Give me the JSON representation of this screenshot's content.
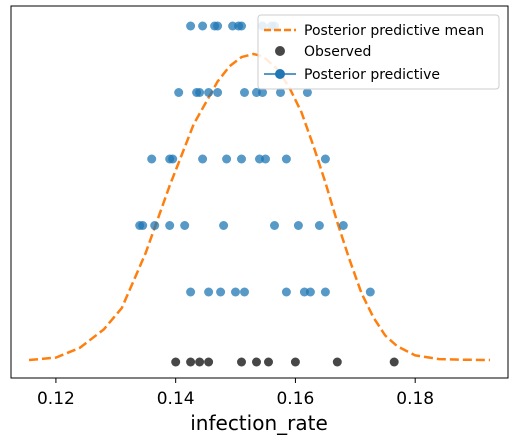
{
  "chart_data": {
    "type": "scatter",
    "title": "",
    "xlabel": "infection_rate",
    "ylabel": "",
    "xlim": [
      0.1125,
      0.1955
    ],
    "x_ticks": [
      0.12,
      0.14,
      0.16,
      0.18
    ],
    "x_tick_labels": [
      "0.12",
      "0.14",
      "0.16",
      "0.18"
    ],
    "grid": false,
    "legend_position": "upper-right",
    "colors": {
      "observed": "#333333",
      "predictive": "#1f77b4",
      "mean": "#ff7f0e",
      "axis": "#000000"
    },
    "legend": [
      {
        "label": "Posterior predictive mean",
        "marker": "dashed-line"
      },
      {
        "label": "Observed",
        "marker": "dot"
      },
      {
        "label": "Posterior predictive",
        "marker": "line-dot"
      }
    ],
    "observed": [
      0.14,
      0.1425,
      0.144,
      0.1455,
      0.151,
      0.1535,
      0.1555,
      0.16,
      0.167,
      0.1765
    ],
    "posterior_predictive": [
      [
        0.1425,
        0.1455,
        0.1475,
        0.15,
        0.1515,
        0.1585,
        0.1615,
        0.1625,
        0.165,
        0.1725
      ],
      [
        0.134,
        0.1345,
        0.1365,
        0.139,
        0.1415,
        0.148,
        0.1565,
        0.1605,
        0.164,
        0.168
      ],
      [
        0.136,
        0.139,
        0.1395,
        0.1445,
        0.1485,
        0.151,
        0.154,
        0.155,
        0.1585,
        0.165
      ],
      [
        0.1405,
        0.1435,
        0.144,
        0.1455,
        0.147,
        0.1515,
        0.1535,
        0.1545,
        0.1575,
        0.162
      ],
      [
        0.1425,
        0.1445,
        0.1465,
        0.147,
        0.1495,
        0.1505,
        0.151,
        0.1545,
        0.156,
        0.1565
      ]
    ],
    "mean_curve": {
      "x": [
        0.1155,
        0.12,
        0.124,
        0.128,
        0.131,
        0.133,
        0.135,
        0.137,
        0.139,
        0.141,
        0.143,
        0.145,
        0.147,
        0.149,
        0.151,
        0.153,
        0.154,
        0.155,
        0.157,
        0.159,
        0.161,
        0.163,
        0.165,
        0.167,
        0.169,
        0.171,
        0.173,
        0.175,
        0.177,
        0.18,
        0.184,
        0.188,
        0.1925
      ],
      "y": [
        0.0,
        0.008,
        0.04,
        0.1,
        0.17,
        0.26,
        0.35,
        0.46,
        0.57,
        0.67,
        0.77,
        0.84,
        0.91,
        0.96,
        0.99,
        1.0,
        0.995,
        0.985,
        0.95,
        0.89,
        0.81,
        0.7,
        0.58,
        0.45,
        0.33,
        0.22,
        0.14,
        0.08,
        0.045,
        0.015,
        0.003,
        0.001,
        0.0
      ]
    }
  }
}
